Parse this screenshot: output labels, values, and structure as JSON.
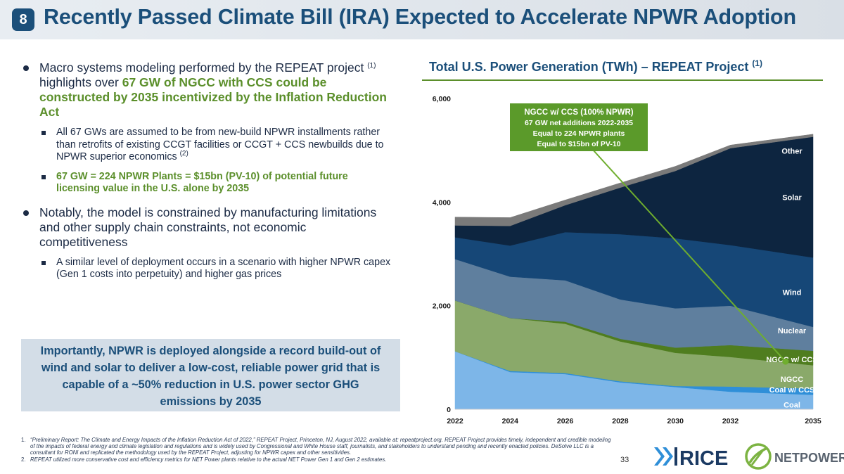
{
  "header": {
    "slide_number": "8",
    "title": "Recently Passed Climate Bill (IRA) Expected to Accelerate NPWR Adoption"
  },
  "left": {
    "bullet1": {
      "text_a": "Macro systems modeling performed by the REPEAT project ",
      "sup": "(1)",
      "text_b": " highlights over ",
      "highlight": "67 GW of NGCC with CCS could be constructed by 2035 incentivized by the Inflation Reduction Act"
    },
    "sub1": {
      "text": "All 67 GWs are assumed to be from new-build NPWR installments rather than retrofits of existing CCGT facilities or CCGT + CCS newbuilds due to NPWR superior economics ",
      "sup": "(2)"
    },
    "sub2": {
      "highlight": "67 GW = 224 NPWR Plants = $15bn (PV-10) of potential future licensing value in the U.S. alone by 2035"
    },
    "bullet2": {
      "text": "Notably, the model is constrained by manufacturing limitations and other supply chain constraints, not economic competitiveness"
    },
    "sub3": {
      "text": "A similar level of deployment occurs in a scenario with higher NPWR capex (Gen 1 costs into perpetuity) and higher gas prices"
    },
    "callout": "Importantly, NPWR is deployed alongside a record build-out of wind and solar to deliver a low-cost, reliable power grid that is capable of a ~50% reduction in U.S. power sector GHG emissions by 2035"
  },
  "chart_title": {
    "text": "Total U.S. Power Generation (TWh) – REPEAT Project ",
    "sup": "(1)"
  },
  "chart_data": {
    "type": "area",
    "stacked": true,
    "title": "Total U.S. Power Generation (TWh) – REPEAT Project (1)",
    "x": [
      2022,
      2024,
      2026,
      2028,
      2030,
      2032,
      2035
    ],
    "x_ticks": [
      "2022",
      "2024",
      "2026",
      "2028",
      "2030",
      "2032",
      "2035"
    ],
    "ylim": [
      0,
      6000
    ],
    "y_ticks": [
      0,
      2000,
      4000,
      6000
    ],
    "y_tick_labels": [
      "0",
      "2,000",
      "4,000",
      "6,000"
    ],
    "grid": false,
    "series": [
      {
        "name": "Coal",
        "color": "#7db6e8",
        "values": [
          1120,
          720,
          680,
          520,
          430,
          340,
          280
        ]
      },
      {
        "name": "Coal w/ CCS",
        "color": "#2f8fd8",
        "values": [
          0,
          20,
          20,
          20,
          20,
          100,
          120
        ]
      },
      {
        "name": "NGCC",
        "color": "#8aa96a",
        "values": [
          980,
          1020,
          950,
          770,
          640,
          570,
          450
        ]
      },
      {
        "name": "NGCC w/ CCS",
        "color": "#4f7d1f",
        "values": [
          0,
          0,
          40,
          50,
          100,
          230,
          280
        ]
      },
      {
        "name": "Nuclear",
        "color": "#5f7f9e",
        "values": [
          800,
          800,
          800,
          760,
          760,
          760,
          460
        ]
      },
      {
        "name": "Wind",
        "color": "#164777",
        "values": [
          420,
          600,
          930,
          1260,
          1350,
          1170,
          1340
        ]
      },
      {
        "name": "Solar",
        "color": "#0d2540",
        "values": [
          230,
          380,
          520,
          900,
          1300,
          1870,
          2330
        ]
      },
      {
        "name": "Other",
        "color": "#7a7a7a",
        "values": [
          160,
          160,
          100,
          90,
          90,
          60,
          50
        ]
      }
    ],
    "annotation": {
      "lines": [
        "NGCC w/ CCS (100% NPWR)",
        "67 GW net additions 2022-2035",
        "Equal to 224 NPWR plants",
        "Equal to $15bn of PV-10"
      ],
      "fill": "#5b9a2a"
    }
  },
  "footnotes": [
    {
      "n": "1.",
      "text": "“Preliminary Report: The Climate and Energy Impacts of the Inflation Reduction Act of 2022,” REPEAT Project, Princeton, NJ, August 2022, available at: repeatproject.org. REPEAT Project provides timely, independent and credible modeling of the impacts of federal energy and climate legislation and regulations and is widely used by Congressional and White House staff, journalists, and stakeholders to understand pending and recently enacted policies. DeSolve LLC is a consultant for RONI and replicated the methodology used by the REPEAT Project, adjusting for NPWR capex and other sensitivities."
    },
    {
      "n": "2.",
      "text": "REPEAT utilized more conservative cost and efficiency metrics for NET Power plants relative to the actual NET Power Gen 1 and Gen 2 estimates."
    }
  ],
  "page_number": "33",
  "logos": {
    "rice": "RICE",
    "netpower": "NETPOWER"
  }
}
